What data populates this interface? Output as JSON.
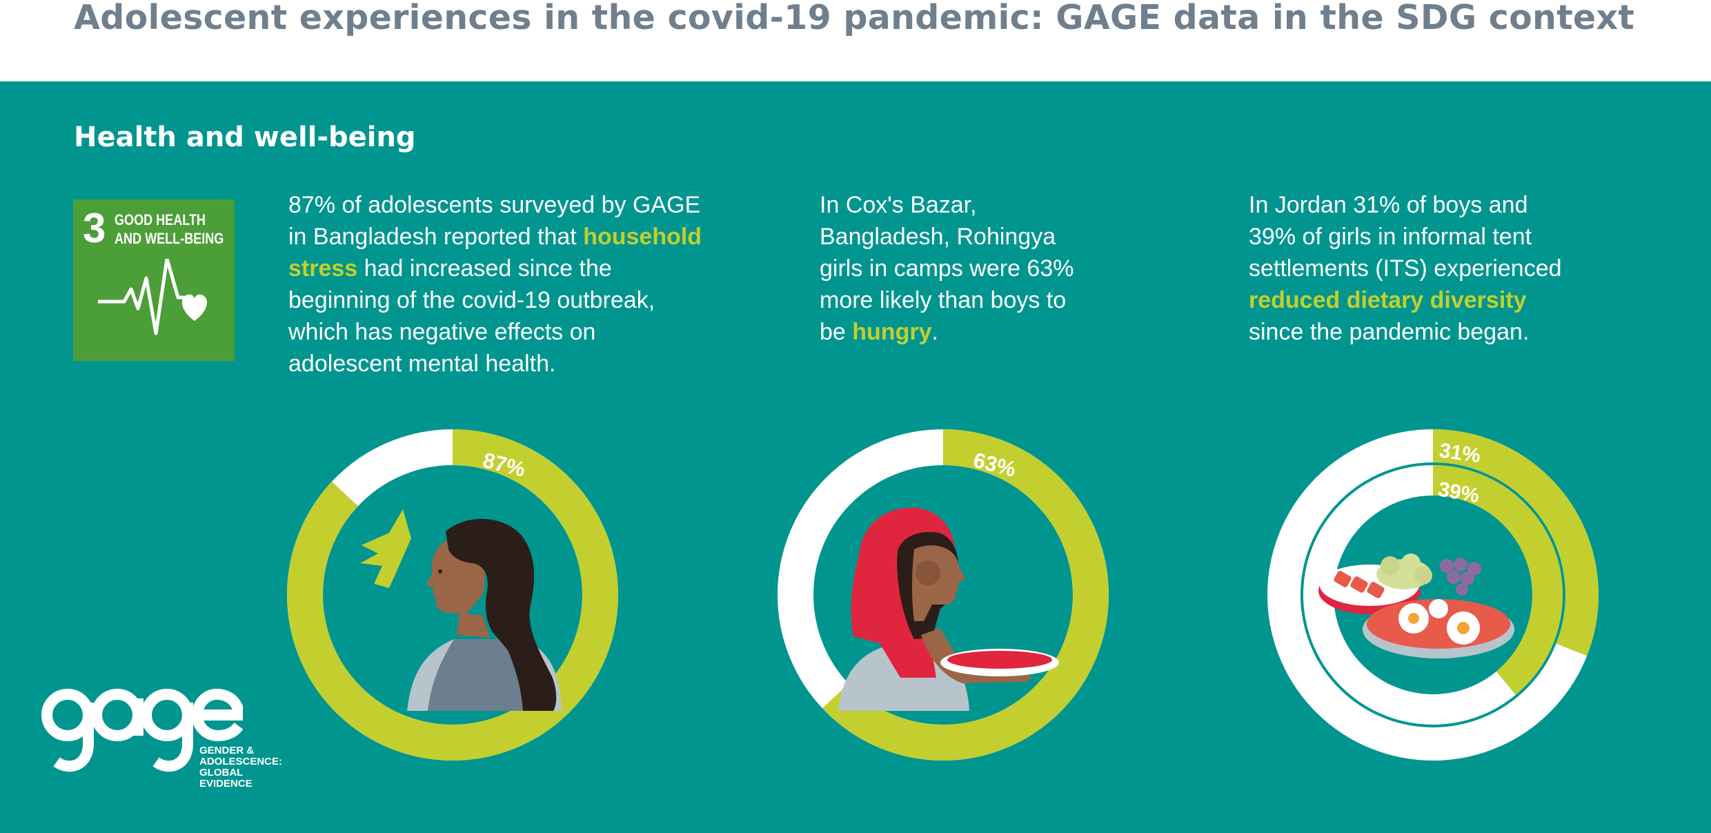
{
  "header": {
    "title": "Adolescent experiences in the covid-19 pandemic: GAGE data in the SDG context"
  },
  "section": {
    "title": "Health and well-being"
  },
  "sdg": {
    "number": "3",
    "label_line1": "GOOD HEALTH",
    "label_line2": "AND WELL-BEING",
    "color": "#4c9f38",
    "icon": "heartbeat-heart-icon"
  },
  "stats": [
    {
      "text_before": "87% of adolescents surveyed by GAGE in Bangladesh reported that ",
      "highlight": "household stress",
      "text_after": " had increased since the beginning of the covid-19 outbreak, which has negative effects on adolescent mental health."
    },
    {
      "text_before": "In Cox's Bazar, Bangladesh, Rohingya girls in camps were 63% more likely than boys to be ",
      "highlight": "hungry",
      "text_after": "."
    },
    {
      "text_before": "In Jordan 31% of boys and 39% of girls in informal tent settlements (ITS) experienced ",
      "highlight": "reduced dietary diversity",
      "text_after": " since the pandemic began."
    }
  ],
  "chart_data": [
    {
      "type": "pie",
      "variant": "donut",
      "values": [
        87
      ],
      "labels": [
        "87%"
      ],
      "max": 100,
      "illustration": "stressed-girl-profile"
    },
    {
      "type": "pie",
      "variant": "donut",
      "values": [
        63
      ],
      "labels": [
        "63%"
      ],
      "max": 100,
      "illustration": "girl-with-empty-bowl"
    },
    {
      "type": "pie",
      "variant": "double-donut",
      "series": [
        {
          "values": [
            31
          ],
          "label": "31%"
        },
        {
          "values": [
            39
          ],
          "label": "39%"
        }
      ],
      "max": 100,
      "illustration": "plates-of-food"
    }
  ],
  "colors": {
    "background": "#00958f",
    "accent": "#c2cf2f",
    "ring_remainder": "#ffffff",
    "title": "#6f7f8d"
  },
  "logo": {
    "wordmark": "gage",
    "tagline": [
      "GENDER &",
      "ADOLESCENCE:",
      "GLOBAL",
      "EVIDENCE"
    ]
  }
}
